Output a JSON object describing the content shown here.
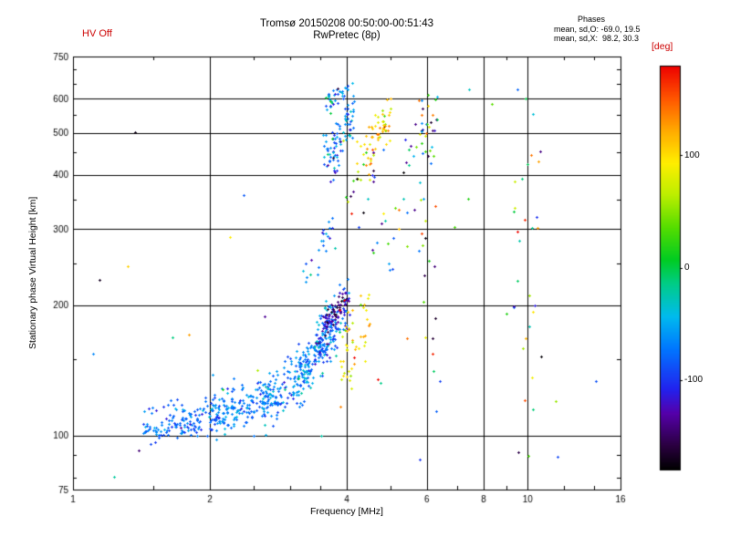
{
  "header": {
    "hv_status": "HV Off",
    "title_line1": "Tromsø 20150208 00:50:00-00:51:43",
    "title_line2": "RwPretec (8p)",
    "phases_label": "Phases",
    "phases_o": "mean, sd,O: -69.0, 19.5",
    "phases_x": "mean, sd,X:  98.2, 30.3"
  },
  "colors": {
    "annotation_red": "#cc0000",
    "axis": "#000000",
    "background": "#ffffff"
  },
  "chart_data": {
    "type": "scatter",
    "title": "Tromsø 20150208 00:50:00-00:51:43",
    "subtitle": "RwPretec (8p)",
    "xlabel": "Frequency [MHz]",
    "ylabel": "Stationary phase Virtual Height [km]",
    "x_scale": "log",
    "y_scale": "log",
    "xlim": [
      1,
      16
    ],
    "ylim": [
      75,
      750
    ],
    "grid": true,
    "x_ticks": [
      {
        "v": 1,
        "label": "1"
      },
      {
        "v": 2,
        "label": "2"
      },
      {
        "v": 4,
        "label": "4"
      },
      {
        "v": 6,
        "label": "6"
      },
      {
        "v": 8,
        "label": "8"
      },
      {
        "v": 10,
        "label": "10"
      },
      {
        "v": 16,
        "label": "16"
      }
    ],
    "y_ticks": [
      {
        "v": 750,
        "label": "750"
      },
      {
        "v": 600,
        "label": "600"
      },
      {
        "v": 500,
        "label": "500"
      },
      {
        "v": 400,
        "label": "400"
      },
      {
        "v": 300,
        "label": "300"
      },
      {
        "v": 200,
        "label": "200"
      },
      {
        "v": 100,
        "label": "100"
      },
      {
        "v": 75,
        "label": "75"
      }
    ],
    "x_gridlines": [
      2,
      4,
      6,
      8,
      10
    ],
    "y_gridlines": [
      100,
      200,
      300,
      400,
      500,
      600
    ],
    "x_minor_ticks": [
      1.5,
      2.5,
      3,
      3.5,
      5,
      7,
      9,
      12,
      14
    ],
    "y_minor_ticks": [
      80,
      90,
      150,
      250,
      350,
      450,
      550,
      650,
      700
    ],
    "colorbar": {
      "label": "[deg]",
      "min": -180,
      "max": 180,
      "ticks": [
        {
          "v": 100,
          "label": "100"
        },
        {
          "v": 0,
          "label": "0"
        },
        {
          "v": -100,
          "label": "-100"
        }
      ]
    },
    "colormap": [
      {
        "t": 0.0,
        "c": "#000000"
      },
      {
        "t": 0.06,
        "c": "#2a0040"
      },
      {
        "t": 0.14,
        "c": "#5500aa"
      },
      {
        "t": 0.2,
        "c": "#2222ee"
      },
      {
        "t": 0.3,
        "c": "#0077ff"
      },
      {
        "t": 0.38,
        "c": "#00bbee"
      },
      {
        "t": 0.46,
        "c": "#00cc88"
      },
      {
        "t": 0.52,
        "c": "#00cc22"
      },
      {
        "t": 0.6,
        "c": "#55dd00"
      },
      {
        "t": 0.68,
        "c": "#bbee00"
      },
      {
        "t": 0.76,
        "c": "#ffee00"
      },
      {
        "t": 0.84,
        "c": "#ffaa00"
      },
      {
        "t": 0.92,
        "c": "#ff5500"
      },
      {
        "t": 1.0,
        "c": "#ee0000"
      }
    ],
    "marker": "plus",
    "seed": 42,
    "clusters": [
      {
        "n": 150,
        "x": [
          1.42,
          2.1
        ],
        "y": [
          104,
          112
        ],
        "ys": 0.05,
        "p": [
          -75,
          18
        ]
      },
      {
        "n": 150,
        "x": [
          2.0,
          2.7
        ],
        "y": [
          110,
          122
        ],
        "ys": 0.06,
        "p": [
          -72,
          18
        ]
      },
      {
        "n": 130,
        "x": [
          2.6,
          3.3
        ],
        "y": [
          118,
          142
        ],
        "ys": 0.07,
        "p": [
          -70,
          20
        ]
      },
      {
        "n": 150,
        "x": [
          3.1,
          3.8
        ],
        "y": [
          136,
          178
        ],
        "ys": 0.08,
        "p": [
          -68,
          22
        ]
      },
      {
        "n": 120,
        "x": [
          3.4,
          4.05
        ],
        "y": [
          160,
          208
        ],
        "ys": 0.07,
        "p": [
          -85,
          35
        ]
      },
      {
        "n": 45,
        "x": [
          3.55,
          4.0
        ],
        "y": [
          182,
          205
        ],
        "ys": 0.04,
        "p": [
          -145,
          18
        ]
      },
      {
        "n": 50,
        "x": [
          3.85,
          4.5
        ],
        "y": [
          140,
          195
        ],
        "ys": 0.1,
        "p": [
          100,
          30
        ]
      },
      {
        "n": 25,
        "x": [
          3.2,
          3.75
        ],
        "y": [
          235,
          305
        ],
        "ys": 0.05,
        "p": [
          -70,
          25
        ]
      },
      {
        "n": 90,
        "x": [
          3.55,
          4.15
        ],
        "y": [
          420,
          560
        ],
        "ys": 0.08,
        "p": [
          -70,
          30
        ]
      },
      {
        "n": 35,
        "x": [
          3.6,
          4.05
        ],
        "y": [
          585,
          628
        ],
        "ys": 0.025,
        "p": [
          -65,
          40
        ]
      },
      {
        "n": 40,
        "x": [
          4.2,
          5.0
        ],
        "y": [
          430,
          545
        ],
        "ys": 0.07,
        "p": [
          98,
          35
        ]
      },
      {
        "n": 28,
        "x": [
          5.3,
          6.35
        ],
        "y": [
          410,
          560
        ],
        "ys": 0.1,
        "pu": true
      },
      {
        "n": 30,
        "x": [
          5.75,
          6.3
        ],
        "y": [
          100,
          620
        ],
        "yu": true,
        "pu": true
      },
      {
        "n": 28,
        "x": [
          9.3,
          10.7
        ],
        "y": [
          88,
          650
        ],
        "yu": true,
        "pu": true
      },
      {
        "n": 40,
        "x": [
          1.05,
          15.0
        ],
        "y": [
          80,
          700
        ],
        "yu": true,
        "pu": true
      },
      {
        "n": 18,
        "x": [
          4.3,
          5.6
        ],
        "y": [
          240,
          360
        ],
        "yu": true,
        "pu": true
      },
      {
        "n": 22,
        "x": [
          3.95,
          4.6
        ],
        "y": [
          350,
          430
        ],
        "ys": 0.07,
        "pu": true
      },
      {
        "n": 15,
        "x": [
          4.4,
          4.9
        ],
        "y": [
          470,
          530
        ],
        "ys": 0.05,
        "p": [
          120,
          30
        ]
      }
    ]
  }
}
